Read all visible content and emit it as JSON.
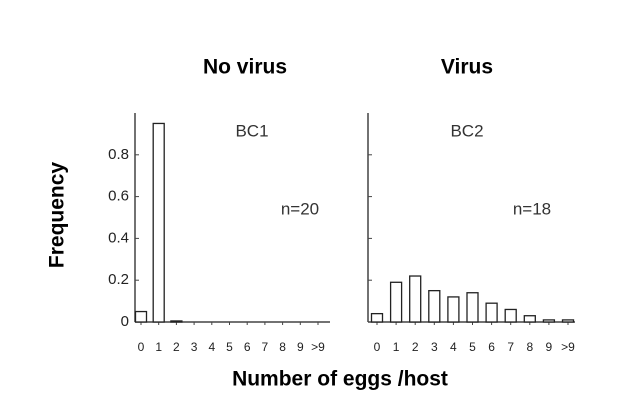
{
  "chart_data": [
    {
      "type": "bar",
      "title": "No virus",
      "annotations": [
        "BC1",
        "n=20"
      ],
      "ylabel": "Frequency",
      "xlabel": "Number of eggs /host",
      "categories": [
        "0",
        "1",
        "2",
        "3",
        "4",
        "5",
        "6",
        "7",
        "8",
        "9",
        ">9"
      ],
      "values": [
        0.05,
        0.95,
        0.005,
        0,
        0,
        0,
        0,
        0,
        0,
        0,
        0
      ],
      "ylim": [
        0,
        1
      ],
      "yticks": [
        0,
        0.2,
        0.4,
        0.6,
        0.8
      ],
      "color": "#ffffff"
    },
    {
      "type": "bar",
      "title": "Virus",
      "annotations": [
        "BC2",
        "n=18"
      ],
      "categories": [
        "0",
        "1",
        "2",
        "3",
        "4",
        "5",
        "6",
        "7",
        "8",
        "9",
        ">9"
      ],
      "values": [
        0.04,
        0.19,
        0.22,
        0.15,
        0.12,
        0.14,
        0.09,
        0.06,
        0.03,
        0.01,
        0.01
      ],
      "ylim": [
        0,
        1
      ],
      "color": "#ffffff"
    }
  ]
}
